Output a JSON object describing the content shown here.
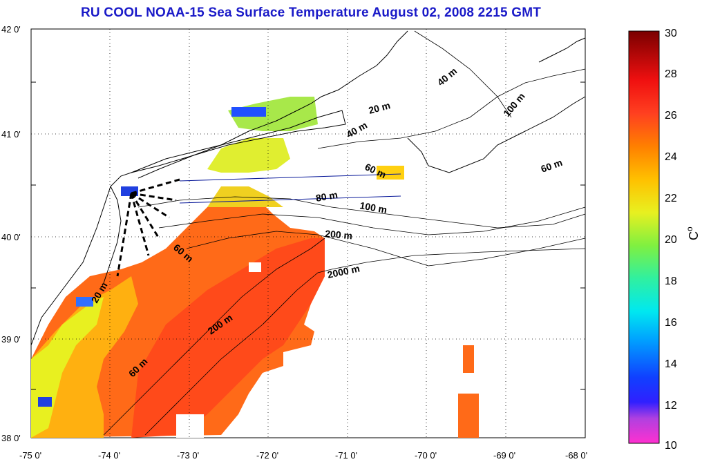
{
  "title": "RU COOL  NOAA-15 Sea Surface Temperature August 02, 2008 2215 GMT",
  "axes": {
    "lon_labels": [
      "-75 0'",
      "-74 0'",
      "-73 0'",
      "-72 0'",
      "-71 0'",
      "-70 0'",
      "-69 0'",
      "-68 0'"
    ],
    "lat_labels": [
      "42 0'",
      "41 0'",
      "40 0'",
      "39 0'",
      "38 0'"
    ],
    "lat_labels_half": [
      "41 0'",
      "40 0'",
      "39 0'"
    ]
  },
  "colorbar": {
    "unit": "C",
    "unit_superscript": "o",
    "ticks": [
      "30",
      "28",
      "26",
      "24",
      "22",
      "20",
      "18",
      "16",
      "14",
      "12",
      "10"
    ],
    "range": [
      10,
      30
    ]
  },
  "contour_labels": [
    "40 m",
    "100 m",
    "20 m",
    "40 m",
    "60 m",
    "60 m",
    "80 m",
    "100 m",
    "200 m",
    "2000 m",
    "60 m",
    "20 m",
    "200 m",
    "60 m"
  ],
  "colors": {
    "title": "#1a1ac8",
    "warm": "#ff4a14",
    "mid": "#ffaa00",
    "cool": "#f0f000",
    "cold": "#1a50ff"
  }
}
